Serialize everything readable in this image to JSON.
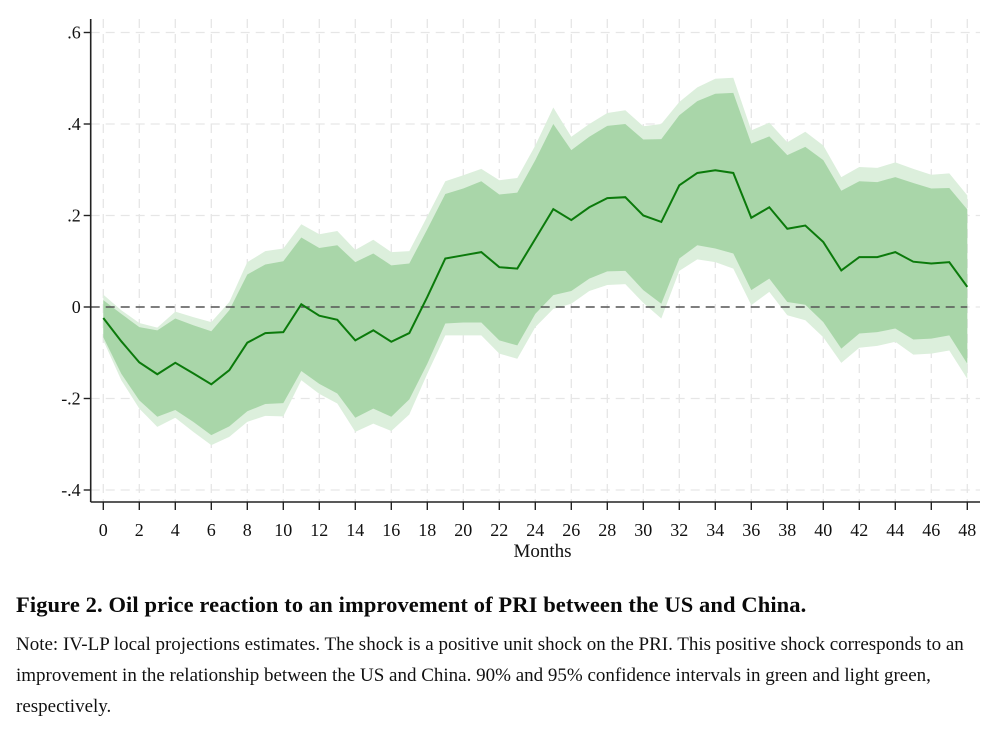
{
  "chart_data": {
    "type": "line",
    "title": "",
    "xlabel": "Months",
    "ylabel": "",
    "xlim": [
      0,
      48
    ],
    "ylim": [
      -0.4,
      0.6
    ],
    "grid": true,
    "reference_line": {
      "y": 0,
      "style": "dashed"
    },
    "x_ticks": [
      0,
      2,
      4,
      6,
      8,
      10,
      12,
      14,
      16,
      18,
      20,
      22,
      24,
      26,
      28,
      30,
      32,
      34,
      36,
      38,
      40,
      42,
      44,
      46,
      48
    ],
    "x_tick_labels": [
      "0",
      "2",
      "4",
      "6",
      "8",
      "10",
      "12",
      "14",
      "16",
      "18",
      "20",
      "22",
      "24",
      "26",
      "28",
      "30",
      "32",
      "34",
      "36",
      "38",
      "40",
      "42",
      "44",
      "46",
      "48"
    ],
    "y_ticks": [
      -0.4,
      -0.2,
      0,
      0.2,
      0.4,
      0.6
    ],
    "y_tick_labels": [
      "-.4",
      "-.2",
      "0",
      ".2",
      ".4",
      ".6"
    ],
    "x": [
      0,
      1,
      2,
      3,
      4,
      5,
      6,
      7,
      8,
      9,
      10,
      11,
      12,
      13,
      14,
      15,
      16,
      17,
      18,
      19,
      20,
      21,
      22,
      23,
      24,
      25,
      26,
      27,
      28,
      29,
      30,
      31,
      32,
      33,
      34,
      35,
      36,
      37,
      38,
      39,
      40,
      41,
      42,
      43,
      44,
      45,
      46,
      47,
      48
    ],
    "series": [
      {
        "name": "IV-LP estimate",
        "color": "#0b7a0b",
        "values": [
          -0.024,
          -0.075,
          -0.121,
          -0.147,
          -0.122,
          -0.145,
          -0.169,
          -0.138,
          -0.078,
          -0.057,
          -0.055,
          0.006,
          -0.019,
          -0.028,
          -0.073,
          -0.051,
          -0.076,
          -0.057,
          0.022,
          0.106,
          0.113,
          0.12,
          0.087,
          0.084,
          0.149,
          0.214,
          0.19,
          0.218,
          0.238,
          0.24,
          0.2,
          0.186,
          0.266,
          0.293,
          0.299,
          0.293,
          0.195,
          0.218,
          0.171,
          0.178,
          0.142,
          0.08,
          0.109,
          0.109,
          0.12,
          0.099,
          0.095,
          0.098,
          0.044
        ]
      }
    ],
    "bands": [
      {
        "name": "95% confidence interval",
        "color": "#dcefdc",
        "upper": [
          0.027,
          -0.007,
          -0.035,
          -0.045,
          -0.01,
          -0.022,
          -0.033,
          0.011,
          0.098,
          0.122,
          0.128,
          0.181,
          0.159,
          0.166,
          0.125,
          0.147,
          0.12,
          0.122,
          0.198,
          0.275,
          0.288,
          0.302,
          0.277,
          0.282,
          0.353,
          0.436,
          0.372,
          0.4,
          0.424,
          0.43,
          0.395,
          0.4,
          0.448,
          0.48,
          0.499,
          0.501,
          0.386,
          0.403,
          0.36,
          0.383,
          0.353,
          0.284,
          0.306,
          0.304,
          0.316,
          0.302,
          0.289,
          0.292,
          0.244
        ],
        "lower": [
          -0.073,
          -0.16,
          -0.222,
          -0.262,
          -0.242,
          -0.273,
          -0.302,
          -0.284,
          -0.251,
          -0.238,
          -0.239,
          -0.16,
          -0.19,
          -0.211,
          -0.273,
          -0.255,
          -0.271,
          -0.235,
          -0.146,
          -0.062,
          -0.062,
          -0.062,
          -0.102,
          -0.113,
          -0.044,
          -0.004,
          0.007,
          0.035,
          0.048,
          0.05,
          0.009,
          -0.025,
          0.079,
          0.104,
          0.098,
          0.084,
          0.004,
          0.033,
          -0.018,
          -0.029,
          -0.066,
          -0.122,
          -0.089,
          -0.085,
          -0.076,
          -0.104,
          -0.102,
          -0.095,
          -0.157
        ]
      },
      {
        "name": "90% confidence interval",
        "color": "#a9d6a9",
        "upper": [
          0.015,
          -0.015,
          -0.044,
          -0.051,
          -0.025,
          -0.04,
          -0.053,
          -0.007,
          0.071,
          0.093,
          0.1,
          0.152,
          0.129,
          0.135,
          0.098,
          0.117,
          0.091,
          0.095,
          0.17,
          0.247,
          0.259,
          0.275,
          0.246,
          0.25,
          0.321,
          0.4,
          0.343,
          0.372,
          0.396,
          0.4,
          0.366,
          0.367,
          0.419,
          0.45,
          0.466,
          0.468,
          0.357,
          0.373,
          0.332,
          0.35,
          0.321,
          0.254,
          0.275,
          0.273,
          0.284,
          0.271,
          0.259,
          0.26,
          0.213
        ],
        "lower": [
          -0.066,
          -0.146,
          -0.204,
          -0.24,
          -0.225,
          -0.251,
          -0.28,
          -0.261,
          -0.228,
          -0.212,
          -0.21,
          -0.14,
          -0.168,
          -0.189,
          -0.242,
          -0.222,
          -0.24,
          -0.202,
          -0.124,
          -0.036,
          -0.034,
          -0.034,
          -0.073,
          -0.084,
          -0.015,
          0.026,
          0.035,
          0.062,
          0.078,
          0.079,
          0.037,
          0.007,
          0.106,
          0.135,
          0.128,
          0.117,
          0.037,
          0.062,
          0.011,
          0.005,
          -0.033,
          -0.091,
          -0.058,
          -0.055,
          -0.047,
          -0.071,
          -0.069,
          -0.062,
          -0.124
        ]
      }
    ]
  },
  "caption": {
    "title": "Figure 2. Oil price reaction to an improvement of PRI between the US and China.",
    "note": "Note: IV-LP local projections estimates. The shock is a positive unit shock on the PRI. This positive shock corresponds to an improvement in the relationship between the US and China. 90% and 95% confidence intervals in green and light green, respectively."
  }
}
